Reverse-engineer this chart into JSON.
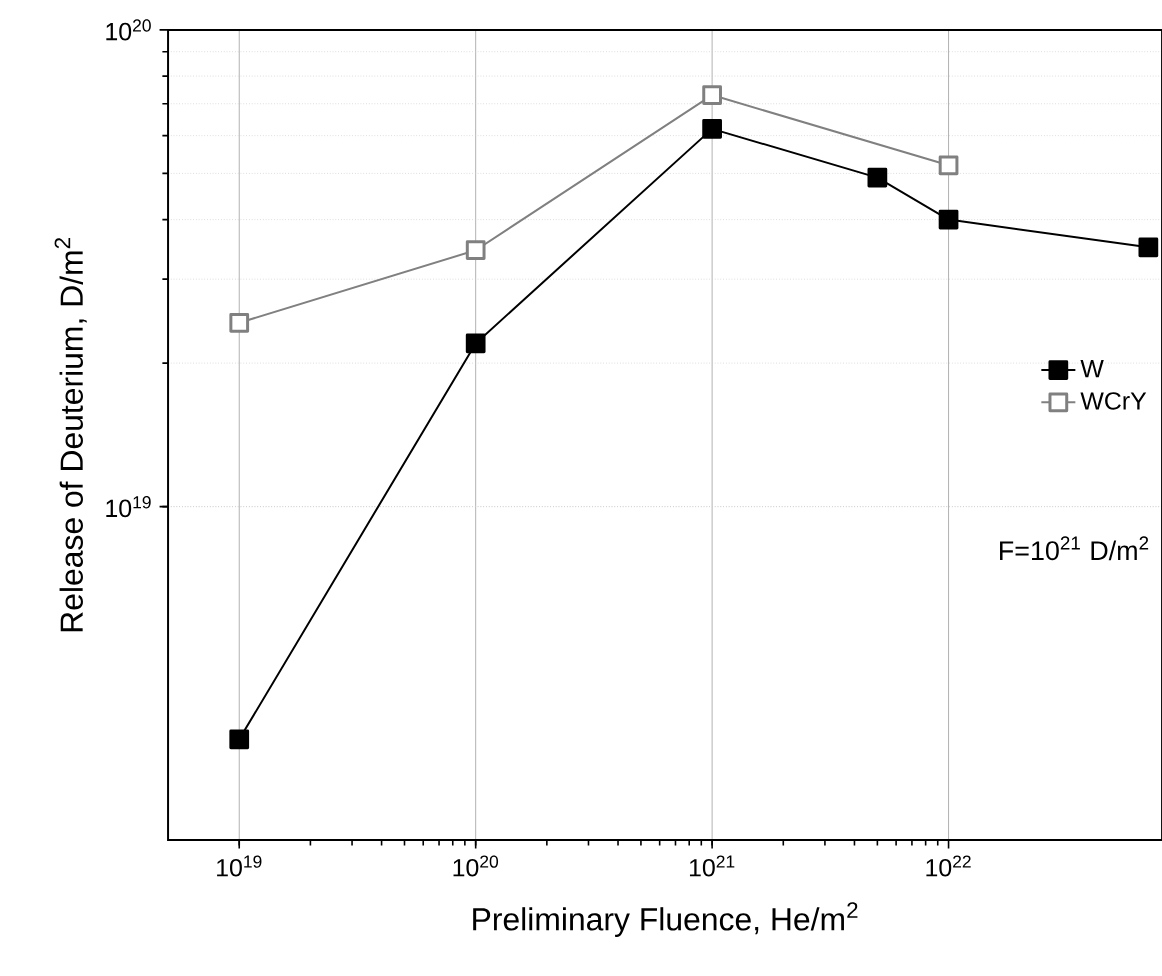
{
  "chart_data": {
    "type": "line",
    "xlabel": "Preliminary Fluence, He/m$^{2}$",
    "ylabel": "Release of Deuterium, D/m$^{2}$",
    "log": "xy",
    "xlim": [
      5e+18,
      8e+22
    ],
    "ylim": [
      2e+18,
      1e+20
    ],
    "xticks": [
      {
        "value": 1e+19,
        "label": "10$^{19}$"
      },
      {
        "value": 1e+20,
        "label": "10$^{20}$"
      },
      {
        "value": 1e+21,
        "label": "10$^{21}$"
      },
      {
        "value": 1e+22,
        "label": "10$^{22}$"
      }
    ],
    "yticks": [
      {
        "value": 1e+19,
        "label": "10$^{19}$"
      },
      {
        "value": 1e+20,
        "label": "10$^{20}$"
      }
    ],
    "grid": true,
    "legend": "right",
    "marker": "square",
    "line_style": "solid",
    "series": [
      {
        "name": "W",
        "color": "#000000",
        "x": [
          1e+19,
          1e+20,
          1e+21,
          5e+21,
          1e+22,
          7e+22
        ],
        "values": [
          3.25e+18,
          2.2e+19,
          6.2e+19,
          4.9e+19,
          4e+19,
          3.5e+19
        ]
      },
      {
        "name": "WCrY",
        "color": "#808080",
        "x": [
          1e+19,
          1e+20,
          1e+21,
          1e+22
        ],
        "values": [
          2.43e+19,
          3.45e+19,
          7.3e+19,
          5.2e+19
        ]
      }
    ],
    "annotations": [
      "F=10$^{21}$ D/m$^{2}$"
    ]
  }
}
